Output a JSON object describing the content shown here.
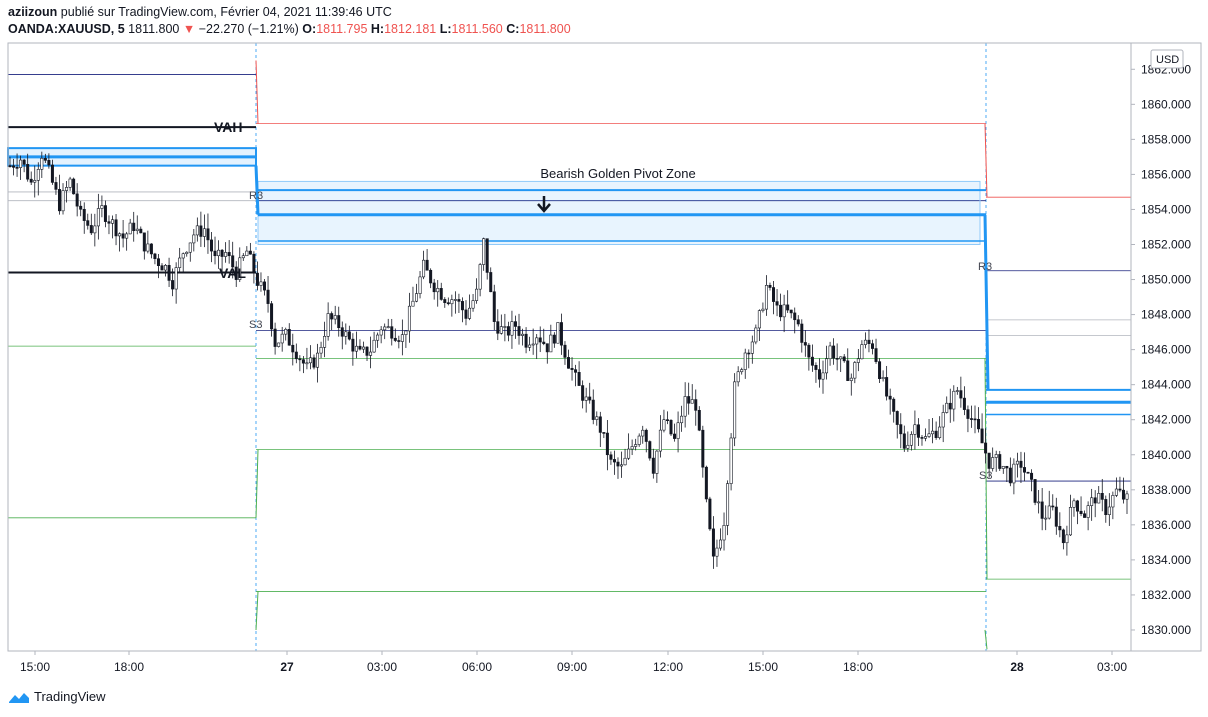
{
  "header": {
    "author": "aziizoun",
    "published_text": "publié sur TradingView.com, Février 04, 2021 11:39:46 UTC",
    "symbol": "OANDA:XAUUSD, 5",
    "last": "1811.800",
    "change": "−22.270 (−1.21%)",
    "o_label": "O:",
    "o_value": "1811.795",
    "h_label": "H:",
    "h_value": "1812.181",
    "l_label": "L:",
    "l_value": "1811.560",
    "c_label": "C:",
    "c_value": "1811.800"
  },
  "footer": {
    "brand": "TradingView"
  },
  "colors": {
    "candle": "#131722",
    "resistance": "#ef5350",
    "support": "#4caf50",
    "pivot": "#1a237e",
    "zone": "#2196f3",
    "grid": "#e0e3eb"
  },
  "chart_data": {
    "type": "candlestick",
    "currency": "USD",
    "y_ticks": [
      "1830.000",
      "1832.000",
      "1834.000",
      "1836.000",
      "1838.000",
      "1840.000",
      "1842.000",
      "1844.000",
      "1846.000",
      "1848.000",
      "1850.000",
      "1852.000",
      "1854.000",
      "1856.000",
      "1858.000",
      "1860.000",
      "1862.000"
    ],
    "ylim": [
      1828.8,
      1863.5
    ],
    "x_ticks": [
      "15:00",
      "18:00",
      "27",
      "03:00",
      "06:00",
      "09:00",
      "12:00",
      "15:00",
      "18:00",
      "28",
      "03:00"
    ],
    "x_bold": [
      "27",
      "28"
    ],
    "annotations": {
      "zone_title": "Bearish Golden Pivot Zone",
      "vah": "VAH",
      "val": "VAL",
      "r3_a": "R3",
      "r3_b": "R3",
      "s3_a": "S3",
      "s3_b": "S3"
    },
    "sessions": [
      {
        "r": 1861.7,
        "s": 1836.4,
        "pivot_hi": 1857.5,
        "pivot_lo": 1856.5,
        "pivot_mid": 1857.0,
        "vah": 1858.7,
        "val": 1850.4
      },
      {
        "r": 1858.9,
        "r3": 1854.5,
        "s3": 1847.1,
        "s": 1845.5,
        "s2": 1840.3,
        "s1": 1832.2,
        "pivot_hi": 1855.1,
        "pivot_mid": 1853.7,
        "pivot_lo": 1852.2
      },
      {
        "r": 1854.7,
        "r3": 1850.5,
        "s3": 1838.5,
        "s": 1832.9,
        "pivot_hi": 1843.7,
        "pivot_mid": 1843.0,
        "pivot_lo": 1842.3,
        "gray_a": 1847.7,
        "gray_b": 1846.8
      }
    ],
    "close_path": [
      [
        0,
        1856.5
      ],
      [
        3,
        1856.9
      ],
      [
        6,
        1855.5
      ],
      [
        9,
        1857.2
      ],
      [
        11,
        1856.1
      ],
      [
        14,
        1854.3
      ],
      [
        17,
        1855.6
      ],
      [
        20,
        1853.6
      ],
      [
        23,
        1852.9
      ],
      [
        26,
        1854.0
      ],
      [
        29,
        1853.2
      ],
      [
        32,
        1852.4
      ],
      [
        35,
        1853.1
      ],
      [
        38,
        1852.0
      ],
      [
        41,
        1851.2
      ],
      [
        44,
        1850.7
      ],
      [
        46,
        1849.9
      ],
      [
        49,
        1851.6
      ],
      [
        52,
        1852.6
      ],
      [
        55,
        1852.9
      ],
      [
        58,
        1851.1
      ],
      [
        61,
        1851.5
      ],
      [
        64,
        1850.4
      ],
      [
        67,
        1851.6
      ],
      [
        70,
        1849.9
      ],
      [
        73,
        1848.7
      ],
      [
        75,
        1846.4
      ],
      [
        78,
        1846.8
      ],
      [
        81,
        1845.9
      ],
      [
        84,
        1844.9
      ],
      [
        87,
        1845.6
      ],
      [
        90,
        1847.8
      ],
      [
        93,
        1847.4
      ],
      [
        96,
        1846.5
      ],
      [
        99,
        1845.7
      ],
      [
        102,
        1846.0
      ],
      [
        105,
        1847.3
      ],
      [
        108,
        1847.1
      ],
      [
        111,
        1846.7
      ],
      [
        114,
        1848.7
      ],
      [
        117,
        1850.7
      ],
      [
        120,
        1849.7
      ],
      [
        123,
        1849.0
      ],
      [
        126,
        1848.9
      ],
      [
        129,
        1848.0
      ],
      [
        132,
        1849.2
      ],
      [
        134,
        1852.1
      ],
      [
        137,
        1847.6
      ],
      [
        140,
        1846.9
      ],
      [
        143,
        1847.4
      ],
      [
        146,
        1846.5
      ],
      [
        149,
        1846.9
      ],
      [
        152,
        1846.2
      ],
      [
        155,
        1847.1
      ],
      [
        158,
        1845.3
      ],
      [
        161,
        1843.8
      ],
      [
        164,
        1842.7
      ],
      [
        167,
        1841.5
      ],
      [
        170,
        1839.5
      ],
      [
        173,
        1839.2
      ],
      [
        176,
        1840.5
      ],
      [
        179,
        1841.7
      ],
      [
        182,
        1839.3
      ],
      [
        185,
        1842.0
      ],
      [
        188,
        1840.8
      ],
      [
        191,
        1843.1
      ],
      [
        194,
        1842.9
      ],
      [
        197,
        1837.1
      ],
      [
        199,
        1833.9
      ],
      [
        202,
        1836.3
      ],
      [
        205,
        1843.8
      ],
      [
        208,
        1845.9
      ],
      [
        211,
        1846.9
      ],
      [
        214,
        1849.6
      ],
      [
        217,
        1848.3
      ],
      [
        220,
        1848.1
      ],
      [
        223,
        1847.4
      ],
      [
        226,
        1845.4
      ],
      [
        229,
        1844.5
      ],
      [
        232,
        1846.1
      ],
      [
        235,
        1845.2
      ],
      [
        238,
        1844.4
      ],
      [
        241,
        1846.3
      ],
      [
        244,
        1846.3
      ],
      [
        247,
        1844.0
      ],
      [
        250,
        1842.1
      ],
      [
        253,
        1840.5
      ],
      [
        256,
        1841.7
      ],
      [
        259,
        1840.9
      ],
      [
        262,
        1841.4
      ],
      [
        265,
        1842.6
      ],
      [
        268,
        1843.7
      ],
      [
        271,
        1842.5
      ],
      [
        274,
        1841.2
      ],
      [
        277,
        1839.6
      ],
      [
        280,
        1839.6
      ],
      [
        283,
        1838.8
      ],
      [
        286,
        1839.5
      ],
      [
        289,
        1838.2
      ],
      [
        292,
        1836.5
      ],
      [
        295,
        1836.8
      ],
      [
        298,
        1835.1
      ],
      [
        301,
        1837.4
      ],
      [
        304,
        1836.6
      ],
      [
        307,
        1837.6
      ],
      [
        310,
        1836.9
      ],
      [
        313,
        1837.9
      ],
      [
        316,
        1837.4
      ]
    ]
  }
}
